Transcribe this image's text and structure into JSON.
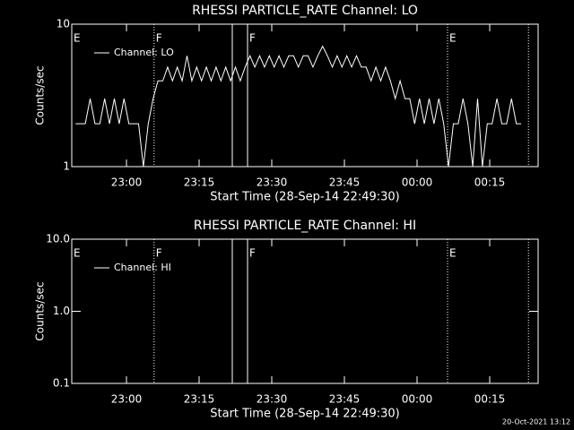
{
  "chart_data": [
    {
      "type": "line",
      "title": "RHESSI PARTICLE_RATE Channel: LO",
      "xlabel": "Start Time (28-Sep-14 22:49:30)",
      "ylabel": "Counts/sec",
      "ylog": true,
      "ylim": [
        1,
        10
      ],
      "yticks": [
        1,
        10
      ],
      "xlim": [
        -0.8,
        95.5
      ],
      "xticks": [
        {
          "value": 10.5,
          "label": "23:00"
        },
        {
          "value": 25.5,
          "label": "23:15"
        },
        {
          "value": 40.5,
          "label": "23:30"
        },
        {
          "value": 55.5,
          "label": "23:45"
        },
        {
          "value": 70.5,
          "label": "00:00"
        },
        {
          "value": 85.5,
          "label": "00:15"
        }
      ],
      "legend": "upper left",
      "x": [
        0,
        1,
        2,
        3,
        4,
        5,
        6,
        7,
        8,
        9,
        10,
        11,
        12,
        13,
        14,
        15,
        16,
        17,
        18,
        19,
        20,
        21,
        22,
        23,
        24,
        25,
        26,
        27,
        28,
        29,
        30,
        31,
        32,
        33,
        34,
        35,
        36,
        37,
        38,
        39,
        40,
        41,
        42,
        43,
        44,
        45,
        46,
        47,
        48,
        49,
        50,
        51,
        52,
        53,
        54,
        55,
        56,
        57,
        58,
        59,
        60,
        61,
        62,
        63,
        64,
        65,
        66,
        67,
        68,
        69,
        70,
        71,
        72,
        73,
        74,
        75,
        76,
        77,
        78,
        79,
        80,
        81,
        82,
        83,
        84,
        85,
        86,
        87,
        88,
        89,
        90,
        91,
        92
      ],
      "series": [
        {
          "name": "Channel: LO",
          "color": "#ffffff",
          "values": [
            2,
            2,
            2,
            3,
            2,
            2,
            3,
            2,
            3,
            2,
            3,
            2,
            2,
            2,
            1,
            2,
            3,
            4,
            4,
            5,
            4,
            5,
            4,
            6,
            4,
            5,
            4,
            5,
            4,
            5,
            4,
            5,
            4,
            5,
            4,
            5,
            6,
            5,
            6,
            5,
            6,
            5,
            6,
            5,
            6,
            6,
            5,
            6,
            6,
            5,
            6,
            7,
            6,
            5,
            6,
            5,
            6,
            5,
            6,
            5,
            5,
            4,
            5,
            4,
            5,
            4,
            3,
            4,
            3,
            3,
            2,
            3,
            2,
            3,
            2,
            3,
            2,
            1,
            2,
            2,
            3,
            2,
            1,
            3,
            1,
            2,
            2,
            3,
            2,
            2,
            3,
            2,
            2
          ]
        }
      ],
      "vlines": [
        {
          "x": 16.2,
          "style": "dotted"
        },
        {
          "x": 32.35,
          "style": "solid"
        },
        {
          "x": 35.5,
          "style": "solid"
        },
        {
          "x": 76.8,
          "style": "dotted"
        },
        {
          "x": 93.5,
          "style": "dotted"
        }
      ],
      "annotations": [
        {
          "x": -0.8,
          "text": "E"
        },
        {
          "x": 16.2,
          "text": "F"
        },
        {
          "x": 35.5,
          "text": "F"
        },
        {
          "x": 76.8,
          "text": "E"
        }
      ]
    },
    {
      "type": "line",
      "title": "RHESSI PARTICLE_RATE Channel: HI",
      "xlabel": "Start Time (28-Sep-14 22:49:30)",
      "ylabel": "Counts/sec",
      "ylog": true,
      "ylim": [
        0.1,
        10
      ],
      "yticks": [
        {
          "value": 0.1,
          "label": "0.1"
        },
        {
          "value": 1,
          "label": "1.0"
        },
        {
          "value": 10,
          "label": "10.0"
        }
      ],
      "xlim": [
        -0.8,
        95.5
      ],
      "xticks": [
        {
          "value": 10.5,
          "label": "23:00"
        },
        {
          "value": 25.5,
          "label": "23:15"
        },
        {
          "value": 40.5,
          "label": "23:30"
        },
        {
          "value": 55.5,
          "label": "23:45"
        },
        {
          "value": 70.5,
          "label": "00:00"
        },
        {
          "value": 85.5,
          "label": "00:15"
        }
      ],
      "legend": "upper left",
      "x": [],
      "series": [
        {
          "name": "Channel: HI",
          "color": "#ffffff",
          "values": []
        }
      ],
      "vlines": [
        {
          "x": 16.2,
          "style": "dotted"
        },
        {
          "x": 32.35,
          "style": "solid"
        },
        {
          "x": 35.5,
          "style": "solid"
        },
        {
          "x": 76.8,
          "style": "dotted"
        },
        {
          "x": 93.5,
          "style": "dotted"
        }
      ],
      "annotations": [
        {
          "x": -0.8,
          "text": "E"
        },
        {
          "x": 16.2,
          "text": "F"
        },
        {
          "x": 35.5,
          "text": "F"
        },
        {
          "x": 76.8,
          "text": "E"
        }
      ]
    }
  ],
  "footer": "20-Oct-2021 13:12"
}
